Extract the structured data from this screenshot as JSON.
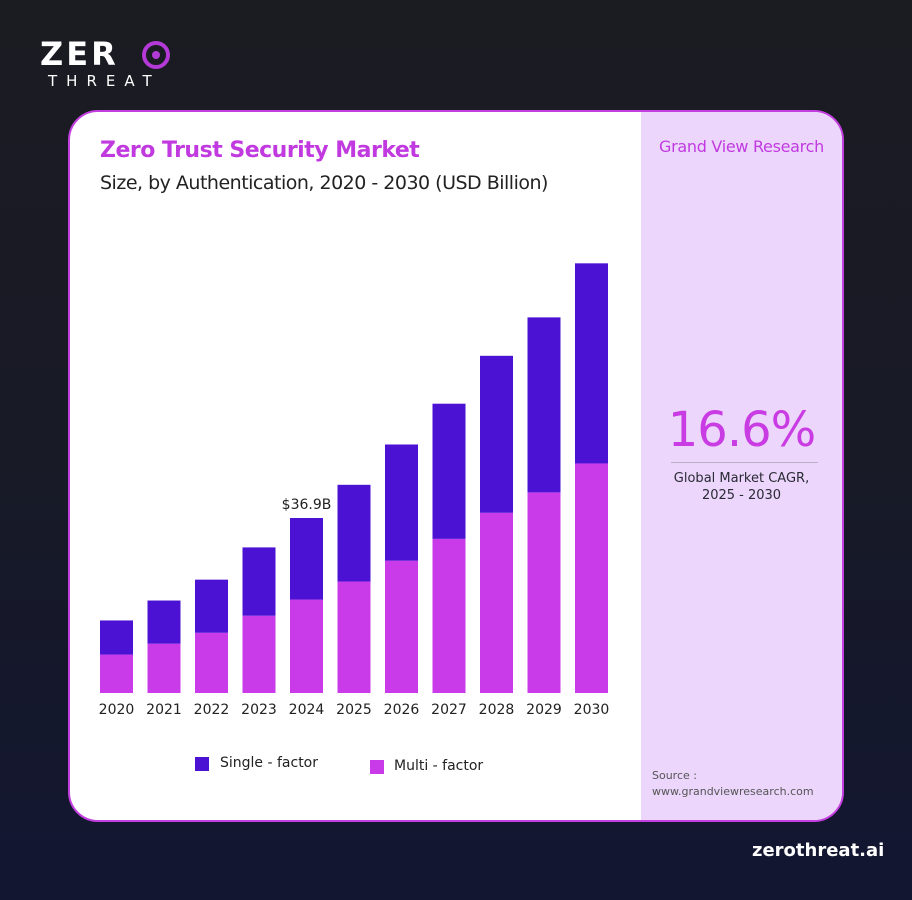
{
  "brand": {
    "logo_text": "ZERO THREAT",
    "footer_url": "zerothreat.ai"
  },
  "colors": {
    "single": "#4b12d4",
    "multi": "#c93ae8",
    "accent": "#c13ae0",
    "panel": "#ecd6fc"
  },
  "chart_data": {
    "type": "bar",
    "stacked": true,
    "title": "Zero Trust Security Market",
    "subtitle": "Size, by Authentication, 2020 - 2030 (USD Billion)",
    "categories": [
      "2020",
      "2021",
      "2022",
      "2023",
      "2024",
      "2025",
      "2026",
      "2027",
      "2028",
      "2029",
      "2030"
    ],
    "series": [
      {
        "name": "Multi - factor",
        "color": "#c93ae8",
        "values": [
          8.1,
          10.4,
          12.7,
          16.3,
          19.7,
          23.5,
          27.9,
          32.5,
          38.0,
          42.3,
          48.4
        ]
      },
      {
        "name": "Single - factor",
        "color": "#4b12d4",
        "values": [
          7.2,
          9.1,
          11.2,
          14.4,
          17.2,
          20.4,
          24.5,
          28.5,
          33.1,
          36.9,
          42.2
        ]
      }
    ],
    "annotations": [
      {
        "category": "2024",
        "text": "$36.9B"
      }
    ],
    "legend": {
      "position": "bottom",
      "items": [
        "Single - factor",
        "Multi - factor"
      ]
    },
    "grid": false,
    "y_axis_visible": false
  },
  "side_panel": {
    "publisher": "Grand View Research",
    "cagr_value": "16.6%",
    "cagr_label_1": "Global Market CAGR,",
    "cagr_label_2": "2025 - 2030",
    "source_label": "Source :",
    "source_url": "www.grandviewresearch.com"
  }
}
